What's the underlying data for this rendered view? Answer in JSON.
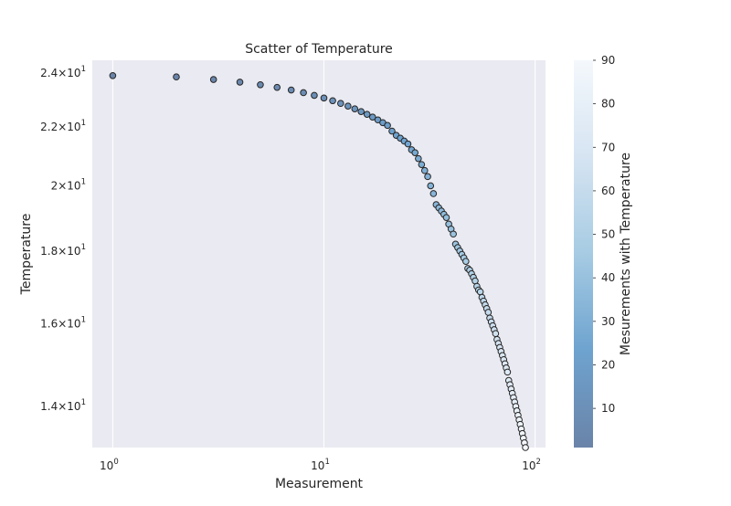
{
  "chart_data": {
    "type": "scatter",
    "title": "Scatter of Temperature",
    "xlabel": "Measurement",
    "ylabel": "Temperature",
    "xscale": "log",
    "yscale": "log",
    "xlim": [
      0.8,
      112
    ],
    "ylim": [
      13.1,
      24.5
    ],
    "grid": true,
    "colormap": "Blues_r",
    "point_edge_color": "#262626",
    "x_ticks": [
      {
        "value": 1,
        "label": "10",
        "exp": "0"
      },
      {
        "value": 10,
        "label": "10",
        "exp": "1"
      },
      {
        "value": 100,
        "label": "10",
        "exp": "2"
      }
    ],
    "y_ticks": [
      {
        "value": 14,
        "label": "1.4×10",
        "exp": "1"
      },
      {
        "value": 16,
        "label": "1.6×10",
        "exp": "1"
      },
      {
        "value": 18,
        "label": "1.8×10",
        "exp": "1"
      },
      {
        "value": 20,
        "label": "2×10",
        "exp": "1"
      },
      {
        "value": 22,
        "label": "2.2×10",
        "exp": "1"
      },
      {
        "value": 24,
        "label": "2.4×10",
        "exp": "1"
      }
    ],
    "colorbar": {
      "label": "Mesurements with Temperature",
      "min": 1,
      "max": 90,
      "ticks": [
        10,
        20,
        30,
        40,
        50,
        60,
        70,
        80,
        90
      ]
    },
    "x": [
      1,
      2,
      3,
      4,
      5,
      6,
      7,
      8,
      9,
      10,
      11,
      12,
      13,
      14,
      15,
      16,
      17,
      18,
      19,
      20,
      21,
      22,
      23,
      24,
      25,
      26,
      27,
      28,
      29,
      30,
      31,
      32,
      33,
      34,
      35,
      36,
      37,
      38,
      39,
      40,
      41,
      42,
      43,
      44,
      45,
      46,
      47,
      48,
      49,
      50,
      51,
      52,
      53,
      54,
      55,
      56,
      57,
      58,
      59,
      60,
      61,
      62,
      63,
      64,
      65,
      66,
      67,
      68,
      69,
      70,
      71,
      72,
      73,
      74,
      75,
      76,
      77,
      78,
      79,
      80,
      81,
      82,
      83,
      84,
      85,
      86,
      87,
      88,
      89,
      90
    ],
    "y": [
      23.9,
      23.85,
      23.75,
      23.65,
      23.55,
      23.45,
      23.35,
      23.25,
      23.15,
      23.05,
      22.95,
      22.85,
      22.75,
      22.65,
      22.55,
      22.45,
      22.35,
      22.25,
      22.15,
      22.05,
      21.85,
      21.7,
      21.6,
      21.5,
      21.4,
      21.2,
      21.1,
      20.9,
      20.7,
      20.5,
      20.3,
      20.0,
      19.75,
      19.4,
      19.3,
      19.2,
      19.1,
      19.0,
      18.8,
      18.65,
      18.5,
      18.2,
      18.1,
      18.0,
      17.9,
      17.8,
      17.7,
      17.5,
      17.45,
      17.35,
      17.25,
      17.15,
      17.0,
      16.9,
      16.85,
      16.7,
      16.6,
      16.5,
      16.4,
      16.3,
      16.15,
      16.05,
      15.95,
      15.85,
      15.75,
      15.6,
      15.5,
      15.4,
      15.3,
      15.2,
      15.1,
      15.0,
      14.9,
      14.8,
      14.6,
      14.5,
      14.4,
      14.3,
      14.2,
      14.1,
      14.0,
      13.9,
      13.8,
      13.7,
      13.6,
      13.5,
      13.4,
      13.3,
      13.2,
      13.1
    ]
  }
}
